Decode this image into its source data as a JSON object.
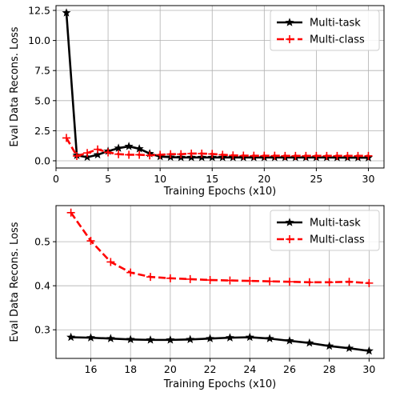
{
  "chart_data": [
    {
      "type": "line",
      "xlabel": "Training Epochs (x10)",
      "ylabel": "Eval Data Recons. Loss",
      "xlim": [
        0,
        31.5
      ],
      "ylim": [
        -0.6,
        12.9
      ],
      "xticks": [
        0,
        5,
        10,
        15,
        20,
        25,
        30
      ],
      "yticks": [
        0.0,
        2.5,
        5.0,
        7.5,
        10.0,
        12.5
      ],
      "ytick_labels": [
        "0.0",
        "2.5",
        "5.0",
        "7.5",
        "10.0",
        "12.5"
      ],
      "grid": true,
      "legend_position": "top-right",
      "x": [
        1,
        2,
        3,
        4,
        5,
        6,
        7,
        8,
        9,
        10,
        11,
        12,
        13,
        14,
        15,
        16,
        17,
        18,
        19,
        20,
        21,
        22,
        23,
        24,
        25,
        26,
        27,
        28,
        29,
        30
      ],
      "series": [
        {
          "name": "Multi-task",
          "color": "#000000",
          "marker": "star",
          "style": "solid",
          "values": [
            12.3,
            0.45,
            0.3,
            0.5,
            0.8,
            1.05,
            1.2,
            1.0,
            0.6,
            0.35,
            0.3,
            0.28,
            0.28,
            0.28,
            0.28,
            0.28,
            0.28,
            0.28,
            0.28,
            0.28,
            0.28,
            0.28,
            0.28,
            0.28,
            0.28,
            0.28,
            0.27,
            0.26,
            0.26,
            0.25
          ]
        },
        {
          "name": "Multi-class",
          "color": "#ff0000",
          "marker": "plus",
          "style": "dashed",
          "values": [
            1.9,
            0.4,
            0.65,
            0.95,
            0.7,
            0.55,
            0.5,
            0.5,
            0.45,
            0.5,
            0.55,
            0.55,
            0.6,
            0.6,
            0.57,
            0.5,
            0.45,
            0.43,
            0.42,
            0.42,
            0.42,
            0.41,
            0.41,
            0.41,
            0.41,
            0.41,
            0.41,
            0.41,
            0.41,
            0.41
          ]
        }
      ]
    },
    {
      "type": "line",
      "xlabel": "Training Epochs (x10)",
      "ylabel": "Eval Data Recons. Loss",
      "xlim": [
        14.25,
        30.75
      ],
      "ylim": [
        0.235,
        0.582
      ],
      "xticks": [
        16,
        18,
        20,
        22,
        24,
        26,
        28,
        30
      ],
      "yticks": [
        0.3,
        0.4,
        0.5
      ],
      "ytick_labels": [
        "0.3",
        "0.4",
        "0.5"
      ],
      "grid": true,
      "legend_position": "top-right",
      "x": [
        15,
        16,
        17,
        18,
        19,
        20,
        21,
        22,
        23,
        24,
        25,
        26,
        27,
        28,
        29,
        30
      ],
      "series": [
        {
          "name": "Multi-task",
          "color": "#000000",
          "marker": "star",
          "style": "solid",
          "values": [
            0.283,
            0.282,
            0.28,
            0.278,
            0.277,
            0.277,
            0.278,
            0.28,
            0.282,
            0.283,
            0.28,
            0.275,
            0.27,
            0.263,
            0.258,
            0.252
          ]
        },
        {
          "name": "Multi-class",
          "color": "#ff0000",
          "marker": "plus",
          "style": "dashed",
          "values": [
            0.566,
            0.502,
            0.454,
            0.43,
            0.42,
            0.417,
            0.415,
            0.413,
            0.412,
            0.411,
            0.41,
            0.409,
            0.408,
            0.408,
            0.409,
            0.406
          ]
        }
      ]
    }
  ]
}
